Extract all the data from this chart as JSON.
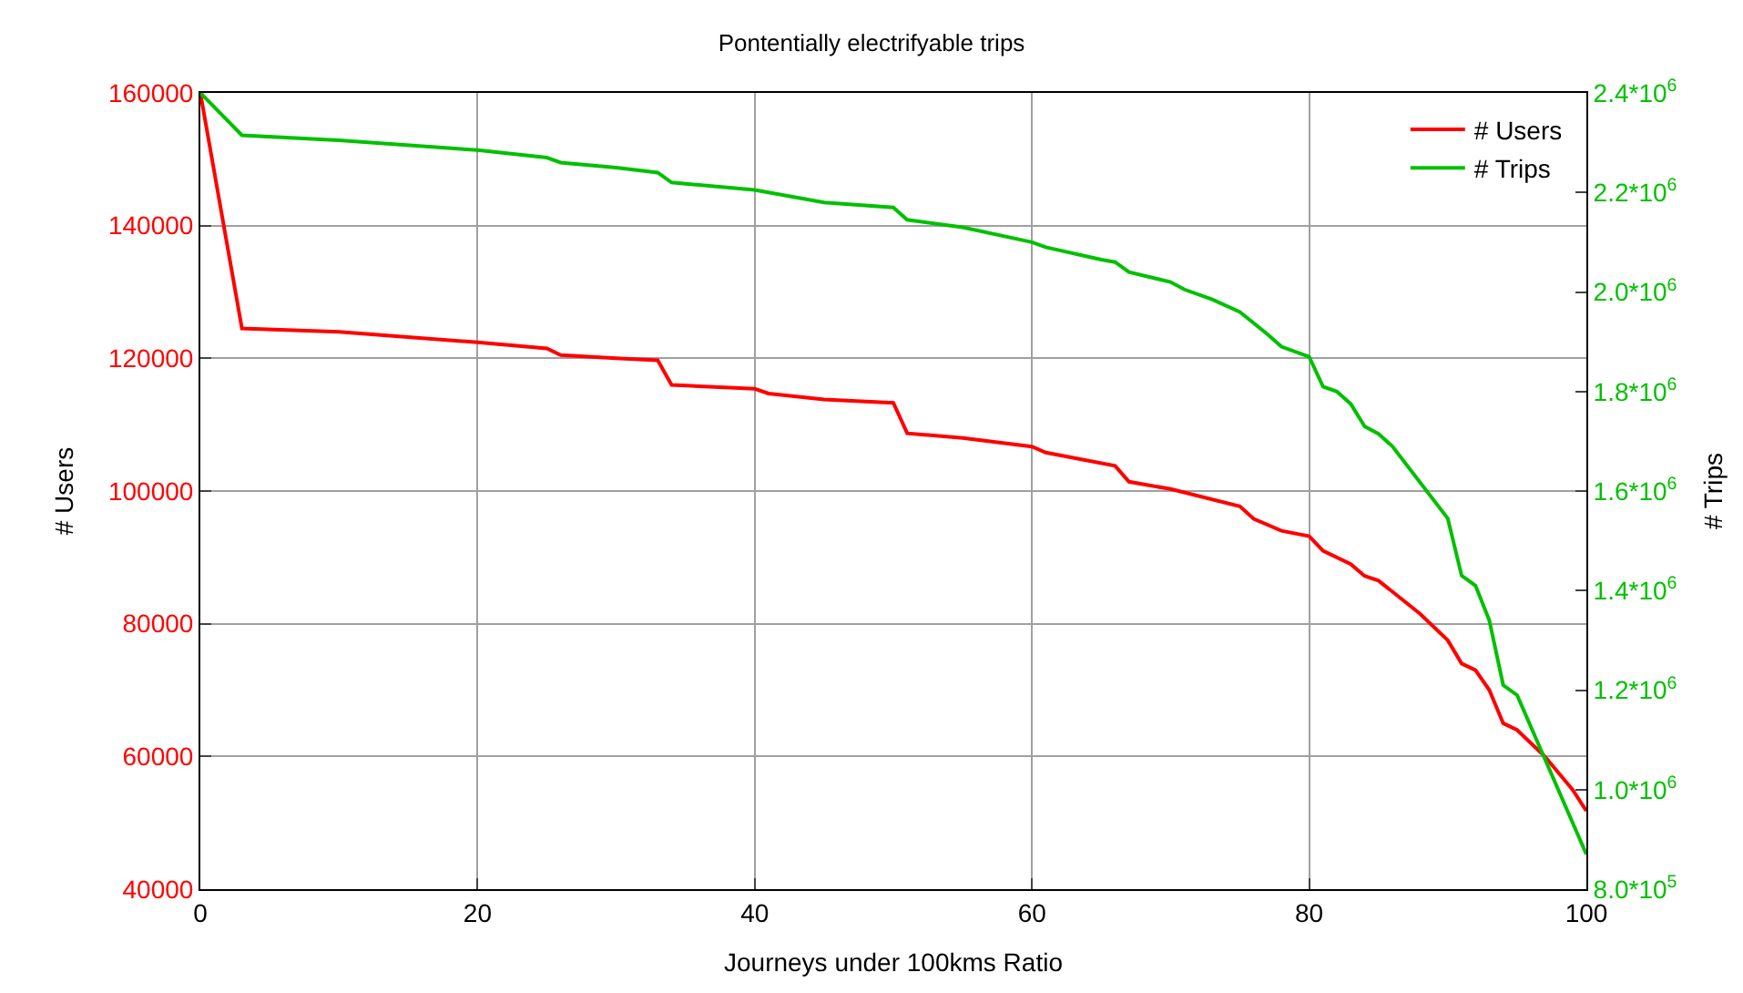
{
  "chart_data": {
    "type": "line",
    "title": "Pontentially electrifyable trips",
    "xlabel": "Journeys under 100kms Ratio",
    "ylabel": "# Users",
    "y2label": "# Trips",
    "xlim": [
      0,
      100
    ],
    "xticks": [
      0,
      20,
      40,
      60,
      80,
      100
    ],
    "ylim": [
      40000,
      160000
    ],
    "yticks": [
      40000,
      60000,
      80000,
      100000,
      120000,
      140000,
      160000
    ],
    "y2lim": [
      800000,
      2400000
    ],
    "y2ticks": [
      {
        "value": 800000,
        "label": "8.0*10$^{5}$"
      },
      {
        "value": 1000000,
        "label": "1.0*10$^{6}$"
      },
      {
        "value": 1200000,
        "label": "1.2*10$^{6}$"
      },
      {
        "value": 1400000,
        "label": "1.4*10$^{6}$"
      },
      {
        "value": 1600000,
        "label": "1.6*10$^{6}$"
      },
      {
        "value": 1800000,
        "label": "1.8*10$^{6}$"
      },
      {
        "value": 2000000,
        "label": "2.0*10$^{6}$"
      },
      {
        "value": 2200000,
        "label": "2.2*10$^{6}$"
      },
      {
        "value": 2400000,
        "label": "2.4*10$^{6}$"
      }
    ],
    "grid": true,
    "legend": "top right",
    "marker": "none",
    "line_style": "solid",
    "series": [
      {
        "name": "# Users",
        "color": "#ff0000",
        "x": [
          0,
          3,
          10,
          20,
          25,
          26,
          30,
          33,
          34,
          40,
          41,
          45,
          50,
          51,
          55,
          60,
          61,
          66,
          67,
          70,
          75,
          76,
          78,
          80,
          81,
          83,
          84,
          85,
          88,
          90,
          91,
          92,
          93,
          94,
          95,
          97,
          99,
          100
        ],
        "values": [
          160000,
          124500,
          124000,
          122400,
          121500,
          120500,
          120000,
          119700,
          116000,
          115400,
          114700,
          113800,
          113300,
          108700,
          108000,
          106700,
          105800,
          103800,
          101400,
          100300,
          97700,
          95800,
          94000,
          93200,
          91000,
          89000,
          87200,
          86500,
          81500,
          77500,
          74000,
          73000,
          70000,
          65000,
          64000,
          60000,
          55000,
          51800
        ]
      },
      {
        "name": "# Trips",
        "color": "#00c000",
        "axis": "y2",
        "x": [
          0,
          3,
          10,
          20,
          25,
          26,
          30,
          33,
          34,
          40,
          45,
          50,
          51,
          55,
          60,
          61,
          65,
          66,
          67,
          70,
          71,
          73,
          75,
          77,
          78,
          80,
          81,
          82,
          83,
          84,
          85,
          86,
          90,
          91,
          92,
          93,
          94,
          95,
          100
        ],
        "values": [
          2400000,
          2315000,
          2305000,
          2285000,
          2270000,
          2260000,
          2250000,
          2240000,
          2220000,
          2205000,
          2180000,
          2170000,
          2145000,
          2130000,
          2100000,
          2090000,
          2065000,
          2060000,
          2040000,
          2020000,
          2005000,
          1985000,
          1960000,
          1915000,
          1890000,
          1870000,
          1810000,
          1800000,
          1775000,
          1730000,
          1715000,
          1690000,
          1545000,
          1430000,
          1410000,
          1340000,
          1210000,
          1190000,
          870000
        ]
      }
    ]
  }
}
